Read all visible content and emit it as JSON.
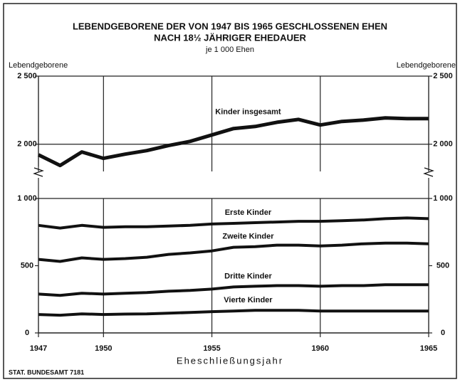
{
  "chart_data": [
    {
      "type": "line",
      "title": [
        "LEBENDGEBORENE DER VON 1947 BIS 1965 GESCHLOSSENEN EHEN",
        "NACH 18½ JÄHRIGER EHEDAUER"
      ],
      "subtitle": "je 1 000 Ehen",
      "ylabel": "Lebendgeborene",
      "x": [
        1947,
        1948,
        1949,
        1950,
        1951,
        1952,
        1953,
        1954,
        1955,
        1956,
        1957,
        1958,
        1959,
        1960,
        1961,
        1962,
        1963,
        1964,
        1965
      ],
      "ylim": [
        1800,
        2500
      ],
      "yticks": [
        {
          "value": 2000,
          "label": "2 000"
        },
        {
          "value": 2500,
          "label": "2 500"
        }
      ],
      "grid": true,
      "series": [
        {
          "name": "Kinder insgesamt",
          "color": "#111111",
          "values": [
            1922,
            1844,
            1943,
            1896,
            1927,
            1953,
            1990,
            2021,
            2068,
            2115,
            2130,
            2161,
            2182,
            2141,
            2167,
            2177,
            2193,
            2188,
            2188
          ]
        }
      ]
    },
    {
      "type": "line",
      "xlabel": "Eheschließungsjahr",
      "x": [
        1947,
        1948,
        1949,
        1950,
        1951,
        1952,
        1953,
        1954,
        1955,
        1956,
        1957,
        1958,
        1959,
        1960,
        1961,
        1962,
        1963,
        1964,
        1965
      ],
      "xlim": [
        1947,
        1965
      ],
      "xticks": [
        1947,
        1950,
        1955,
        1960,
        1965
      ],
      "ylim": [
        0,
        1000
      ],
      "yticks": [
        0,
        500,
        {
          "value": 1000,
          "label": "1 000"
        }
      ],
      "grid": false,
      "series": [
        {
          "name": "Erste Kinder",
          "color": "#111111",
          "values": [
            800,
            780,
            800,
            785,
            790,
            790,
            795,
            800,
            810,
            815,
            820,
            825,
            830,
            830,
            835,
            840,
            850,
            855,
            850
          ]
        },
        {
          "name": "Zweite Kinder",
          "color": "#111111",
          "values": [
            547,
            532,
            558,
            547,
            553,
            563,
            584,
            595,
            610,
            637,
            642,
            653,
            653,
            647,
            653,
            663,
            668,
            668,
            663
          ]
        },
        {
          "name": "Dritte Kinder",
          "color": "#111111",
          "values": [
            289,
            279,
            295,
            289,
            295,
            300,
            310,
            316,
            326,
            342,
            347,
            352,
            352,
            347,
            352,
            352,
            358,
            358,
            358
          ]
        },
        {
          "name": "Vierte Kinder",
          "color": "#111111",
          "values": [
            137,
            132,
            142,
            137,
            140,
            142,
            147,
            152,
            158,
            163,
            168,
            168,
            168,
            163,
            163,
            163,
            163,
            163,
            163
          ]
        }
      ]
    }
  ],
  "source": "STAT. BUNDESAMT 7181"
}
